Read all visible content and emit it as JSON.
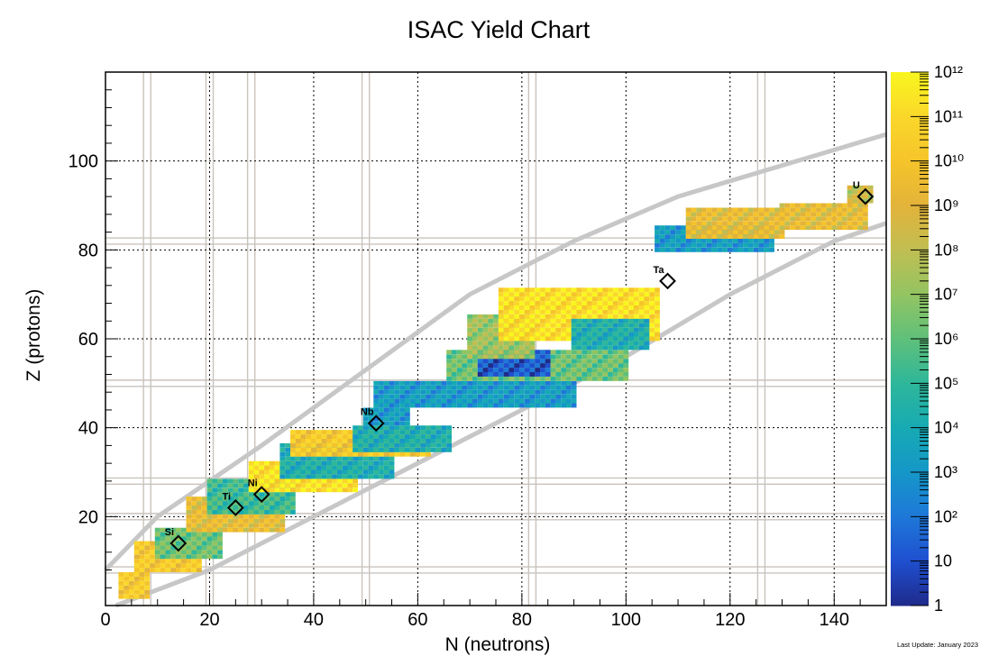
{
  "chart_data": {
    "type": "heatmap",
    "title": "ISAC Yield Chart",
    "xlabel": "N (neutrons)",
    "ylabel": "Z (protons)",
    "xlim": [
      0,
      150
    ],
    "ylim": [
      0,
      120
    ],
    "x_ticks": [
      0,
      20,
      40,
      60,
      80,
      100,
      120,
      140
    ],
    "y_ticks": [
      20,
      40,
      60,
      80,
      100
    ],
    "grid": true,
    "magic_numbers": [
      8,
      20,
      28,
      50,
      82,
      126
    ],
    "colorbar": {
      "scale": "log",
      "range": [
        1,
        1000000000000
      ],
      "tick_labels": [
        "1",
        "10",
        "10²",
        "10³",
        "10⁴",
        "10⁵",
        "10⁶",
        "10⁷",
        "10⁸",
        "10⁹",
        "10¹⁰",
        "10¹¹",
        "10¹²"
      ],
      "colors": [
        "#1f2a8a",
        "#1f4fd0",
        "#1e78d8",
        "#1597c8",
        "#17aab3",
        "#2eb79a",
        "#5fc07a",
        "#93c462",
        "#c0be52",
        "#e3b33a",
        "#f5c42a",
        "#fad72a",
        "#f9f61e"
      ]
    },
    "elements": [
      {
        "label": "Si",
        "n": 14,
        "z": 14
      },
      {
        "label": "Ti",
        "n": 25,
        "z": 22
      },
      {
        "label": "Ni",
        "n": 30,
        "z": 25
      },
      {
        "label": "Nb",
        "n": 52,
        "z": 41
      },
      {
        "label": "Ta",
        "n": 108,
        "z": 73
      },
      {
        "label": "U",
        "n": 146,
        "z": 92
      }
    ],
    "yield_regions": [
      {
        "n": [
          3,
          8
        ],
        "z": [
          2,
          7
        ],
        "log_yield": 10
      },
      {
        "n": [
          6,
          18
        ],
        "z": [
          8,
          14
        ],
        "log_yield": 10
      },
      {
        "n": [
          10,
          22
        ],
        "z": [
          11,
          17
        ],
        "log_yield": 6
      },
      {
        "n": [
          16,
          34
        ],
        "z": [
          17,
          24
        ],
        "log_yield": 9
      },
      {
        "n": [
          20,
          36
        ],
        "z": [
          21,
          28
        ],
        "log_yield": 5
      },
      {
        "n": [
          28,
          48
        ],
        "z": [
          26,
          32
        ],
        "log_yield": 11
      },
      {
        "n": [
          34,
          55
        ],
        "z": [
          29,
          36
        ],
        "log_yield": 4
      },
      {
        "n": [
          36,
          62
        ],
        "z": [
          34,
          39
        ],
        "log_yield": 10
      },
      {
        "n": [
          48,
          66
        ],
        "z": [
          35,
          40
        ],
        "log_yield": 4
      },
      {
        "n": [
          50,
          58
        ],
        "z": [
          41,
          44
        ],
        "log_yield": 3
      },
      {
        "n": [
          52,
          90
        ],
        "z": [
          45,
          50
        ],
        "log_yield": 3
      },
      {
        "n": [
          66,
          100
        ],
        "z": [
          51,
          57
        ],
        "log_yield": 6
      },
      {
        "n": [
          72,
          85
        ],
        "z": [
          52,
          57
        ],
        "log_yield": 1
      },
      {
        "n": [
          70,
          82
        ],
        "z": [
          56,
          65
        ],
        "log_yield": 7
      },
      {
        "n": [
          76,
          106
        ],
        "z": [
          60,
          71
        ],
        "log_yield": 11
      },
      {
        "n": [
          90,
          104
        ],
        "z": [
          58,
          64
        ],
        "log_yield": 4
      },
      {
        "n": [
          106,
          128
        ],
        "z": [
          80,
          85
        ],
        "log_yield": 3
      },
      {
        "n": [
          112,
          130
        ],
        "z": [
          83,
          89
        ],
        "log_yield": 9
      },
      {
        "n": [
          130,
          146
        ],
        "z": [
          85,
          90
        ],
        "log_yield": 9
      },
      {
        "n": [
          143,
          147
        ],
        "z": [
          91,
          94
        ],
        "log_yield": 8
      }
    ]
  },
  "footer": {
    "last_update": "Last Update: January 2023"
  }
}
